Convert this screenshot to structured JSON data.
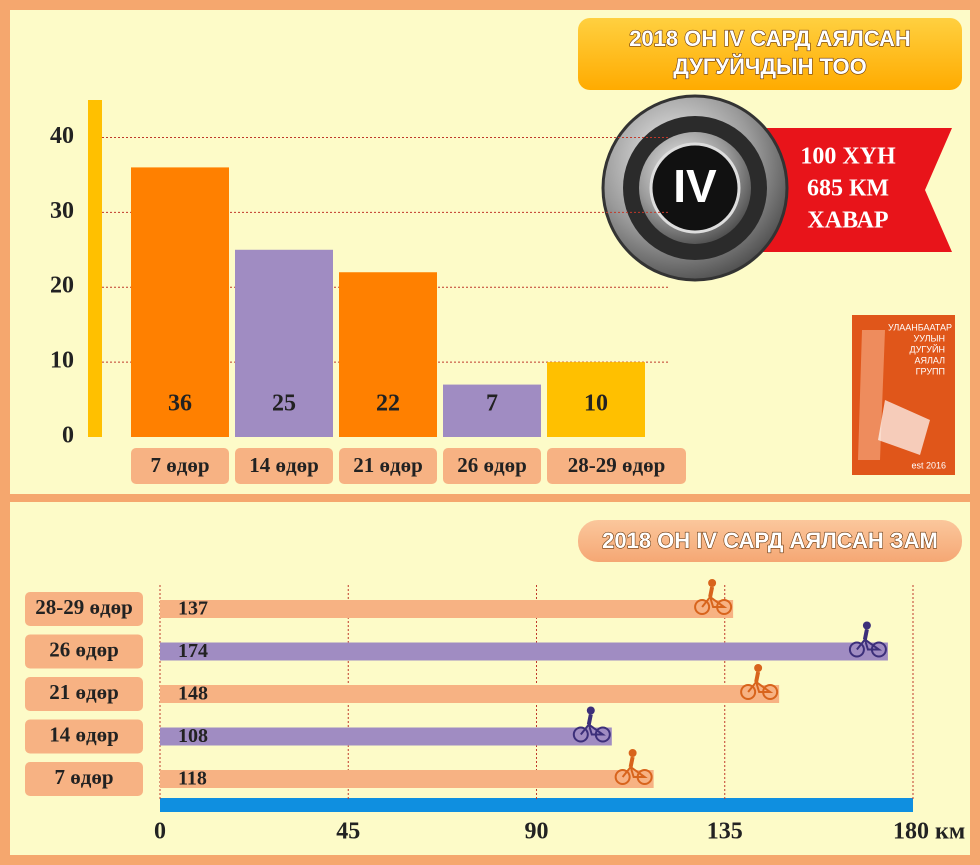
{
  "chart_data": [
    {
      "type": "bar",
      "title": [
        "2018 ОН IV САРД АЯЛСАН",
        "ДУГУЙЧДЫН ТОО"
      ],
      "categories": [
        "7 өдөр",
        "14 өдөр",
        "21 өдөр",
        "26 өдөр",
        "28-29 өдөр"
      ],
      "values": [
        36,
        25,
        22,
        7,
        10
      ],
      "colors": [
        "#ff8000",
        "#a08cc2",
        "#ff8000",
        "#a08cc2",
        "#ffc000"
      ],
      "ylim": [
        0,
        45
      ],
      "yticks": [
        0,
        10,
        20,
        30,
        40
      ],
      "grid": true
    },
    {
      "type": "barh",
      "title": "2018 ОН IV САРД АЯЛСАН ЗАМ",
      "categories": [
        "28-29 өдөр",
        "26 өдөр",
        "21 өдөр",
        "14 өдөр",
        "7 өдөр"
      ],
      "values": [
        137,
        174,
        148,
        108,
        118
      ],
      "colors": [
        "#f7b283",
        "#a08cc2",
        "#f7b283",
        "#a08cc2",
        "#f7b283"
      ],
      "xlim": [
        0,
        180
      ],
      "xticks": [
        0,
        45,
        90,
        135,
        {
          "value": 180,
          "label": "180 км"
        }
      ],
      "grid": true
    }
  ],
  "badge": {
    "emblem": "IV",
    "lines": [
      "100 ХҮН",
      "685 КМ",
      "ХАВАР"
    ]
  },
  "logo": {
    "lines": [
      "УЛААНБААТАР",
      "УУЛЫН",
      "ДУГУЙН",
      "АЯЛАЛ",
      "ГРУПП"
    ],
    "est": "est 2016"
  }
}
